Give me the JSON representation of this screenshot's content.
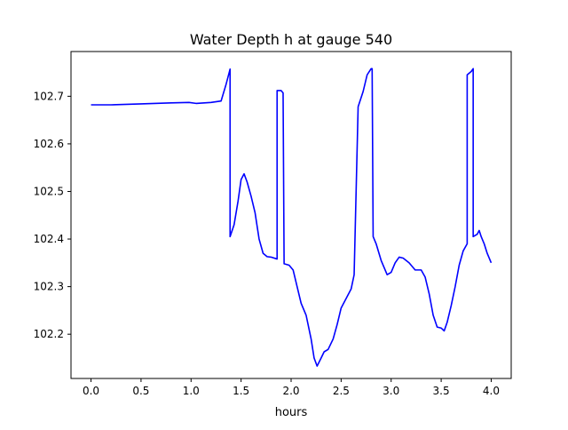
{
  "chart_data": {
    "type": "line",
    "title": "Water Depth h at gauge 540",
    "xlabel": "hours",
    "ylabel": "",
    "xlim": [
      -0.2,
      4.2
    ],
    "ylim": [
      102.107,
      102.794
    ],
    "x_ticks": [
      0.0,
      0.5,
      1.0,
      1.5,
      2.0,
      2.5,
      3.0,
      3.5,
      4.0
    ],
    "x_tick_labels": [
      "0.0",
      "0.5",
      "1.0",
      "1.5",
      "2.0",
      "2.5",
      "3.0",
      "3.5",
      "4.0"
    ],
    "y_ticks": [
      102.2,
      102.3,
      102.4,
      102.5,
      102.6,
      102.7
    ],
    "y_tick_labels": [
      "102.2",
      "102.3",
      "102.4",
      "102.5",
      "102.6",
      "102.7"
    ],
    "grid": false,
    "legend": "none",
    "series": [
      {
        "color": "#0000ff",
        "points": [
          [
            0.0,
            102.682
          ],
          [
            0.2,
            102.682
          ],
          [
            0.5,
            102.684
          ],
          [
            0.8,
            102.686
          ],
          [
            0.98,
            102.687
          ],
          [
            1.05,
            102.685
          ],
          [
            1.2,
            102.687
          ],
          [
            1.3,
            102.69
          ],
          [
            1.35,
            102.725
          ],
          [
            1.39,
            102.757
          ],
          [
            1.39,
            102.405
          ],
          [
            1.43,
            102.43
          ],
          [
            1.47,
            102.48
          ],
          [
            1.5,
            102.525
          ],
          [
            1.53,
            102.537
          ],
          [
            1.56,
            102.52
          ],
          [
            1.6,
            102.49
          ],
          [
            1.64,
            102.455
          ],
          [
            1.68,
            102.4
          ],
          [
            1.72,
            102.37
          ],
          [
            1.76,
            102.363
          ],
          [
            1.8,
            102.362
          ],
          [
            1.86,
            102.358
          ],
          [
            1.86,
            102.712
          ],
          [
            1.9,
            102.712
          ],
          [
            1.92,
            102.707
          ],
          [
            1.93,
            102.348
          ],
          [
            1.98,
            102.345
          ],
          [
            2.02,
            102.335
          ],
          [
            2.06,
            102.3
          ],
          [
            2.1,
            102.265
          ],
          [
            2.15,
            102.24
          ],
          [
            2.2,
            102.19
          ],
          [
            2.23,
            102.15
          ],
          [
            2.26,
            102.133
          ],
          [
            2.3,
            102.15
          ],
          [
            2.33,
            102.163
          ],
          [
            2.37,
            102.168
          ],
          [
            2.42,
            102.19
          ],
          [
            2.46,
            102.22
          ],
          [
            2.5,
            102.255
          ],
          [
            2.55,
            102.275
          ],
          [
            2.6,
            102.295
          ],
          [
            2.63,
            102.325
          ],
          [
            2.67,
            102.678
          ],
          [
            2.72,
            102.71
          ],
          [
            2.76,
            102.745
          ],
          [
            2.8,
            102.758
          ],
          [
            2.81,
            102.758
          ],
          [
            2.82,
            102.405
          ],
          [
            2.85,
            102.39
          ],
          [
            2.9,
            102.355
          ],
          [
            2.93,
            102.34
          ],
          [
            2.96,
            102.325
          ],
          [
            3.0,
            102.33
          ],
          [
            3.04,
            102.35
          ],
          [
            3.08,
            102.362
          ],
          [
            3.12,
            102.36
          ],
          [
            3.18,
            102.35
          ],
          [
            3.24,
            102.335
          ],
          [
            3.3,
            102.335
          ],
          [
            3.34,
            102.32
          ],
          [
            3.38,
            102.285
          ],
          [
            3.42,
            102.24
          ],
          [
            3.46,
            102.215
          ],
          [
            3.5,
            102.213
          ],
          [
            3.53,
            102.207
          ],
          [
            3.56,
            102.225
          ],
          [
            3.6,
            102.26
          ],
          [
            3.64,
            102.3
          ],
          [
            3.68,
            102.345
          ],
          [
            3.72,
            102.375
          ],
          [
            3.76,
            102.39
          ],
          [
            3.76,
            102.745
          ],
          [
            3.8,
            102.752
          ],
          [
            3.82,
            102.758
          ],
          [
            3.82,
            102.405
          ],
          [
            3.86,
            102.41
          ],
          [
            3.88,
            102.418
          ],
          [
            3.9,
            102.405
          ],
          [
            3.93,
            102.39
          ],
          [
            3.96,
            102.37
          ],
          [
            3.98,
            102.36
          ],
          [
            4.0,
            102.35
          ]
        ]
      }
    ]
  }
}
